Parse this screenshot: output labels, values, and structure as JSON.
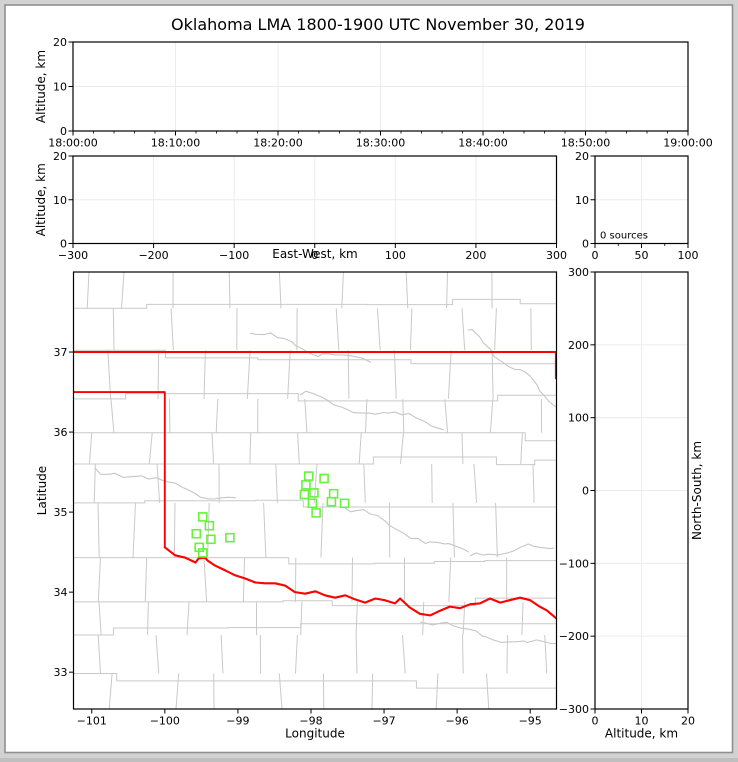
{
  "title": "Oklahoma LMA 1800-1900 UTC November 30, 2019",
  "colors": {
    "state_border": "#ff0000",
    "stations": "#66f33e",
    "county_lines": "#c9c9c9",
    "rivers": "#c6c6c6",
    "grid": "#ececec",
    "frame_bg": "#d2d2d2",
    "frame_line": "#8f8f8f",
    "spine": "#000000",
    "background": "#ffffff"
  },
  "chart_data": [
    {
      "type": "scatter",
      "panel": "time-altitude",
      "title": "Oklahoma LMA 1800-1900 UTC November 30, 2019",
      "ylabel": "Altitude, km",
      "xtick_labels": [
        "18:00:00",
        "18:10:00",
        "18:20:00",
        "18:30:00",
        "18:40:00",
        "18:50:00",
        "19:00:00"
      ],
      "ytick_values": [
        0,
        10,
        20
      ],
      "ytick_labels": [
        "0",
        "10",
        "20"
      ],
      "ylim": [
        0,
        20
      ],
      "points": []
    },
    {
      "type": "scatter",
      "panel": "eastwest-altitude",
      "xlabel": "East-West, km",
      "ylabel": "Altitude, km",
      "xtick_values": [
        -300,
        -200,
        -100,
        0,
        100,
        200,
        300
      ],
      "xtick_labels": [
        "−300",
        "−200",
        "−100",
        "0",
        "100",
        "200",
        "300"
      ],
      "ytick_values": [
        0,
        10,
        20
      ],
      "ytick_labels": [
        "0",
        "10",
        "20"
      ],
      "xlim": [
        -300,
        300
      ],
      "ylim": [
        0,
        20
      ],
      "points": []
    },
    {
      "type": "histogram",
      "panel": "source-count",
      "annotation": "0 sources",
      "xtick_values": [
        0,
        50,
        100
      ],
      "xtick_labels": [
        "0",
        "50",
        "100"
      ],
      "ytick_values": [
        0,
        10,
        20
      ],
      "ytick_labels": [
        "0",
        "10",
        "20"
      ],
      "xlim": [
        0,
        100
      ],
      "ylim": [
        0,
        20
      ],
      "points": []
    },
    {
      "type": "map",
      "panel": "plan-view",
      "xlabel": "Longitude",
      "ylabel": "Latitude",
      "xtick_values": [
        -101,
        -100,
        -99,
        -98,
        -97,
        -96,
        -95
      ],
      "xtick_labels": [
        "−101",
        "−100",
        "−99",
        "−98",
        "−97",
        "−96",
        "−95"
      ],
      "ytick_values": [
        33,
        34,
        35,
        36,
        37
      ],
      "ytick_labels": [
        "33",
        "34",
        "35",
        "36",
        "37"
      ],
      "xlim": [
        -101.25,
        -94.64
      ],
      "ylim": [
        32.54,
        38.0
      ],
      "stations": [
        [
          -98.03,
          35.45
        ],
        [
          -97.82,
          35.42
        ],
        [
          -98.07,
          35.34
        ],
        [
          -98.09,
          35.22
        ],
        [
          -97.96,
          35.24
        ],
        [
          -97.98,
          35.11
        ],
        [
          -97.69,
          35.23
        ],
        [
          -97.72,
          35.13
        ],
        [
          -97.54,
          35.11
        ],
        [
          -97.93,
          34.99
        ],
        [
          -99.48,
          34.94
        ],
        [
          -99.39,
          34.83
        ],
        [
          -99.57,
          34.73
        ],
        [
          -99.37,
          34.66
        ],
        [
          -99.11,
          34.68
        ],
        [
          -99.53,
          34.56
        ],
        [
          -99.48,
          34.49
        ]
      ],
      "state_border": {
        "north": [
          [
            -101.25,
            37.0
          ],
          [
            -94.64,
            37.0
          ]
        ],
        "northeast": [
          [
            -94.65,
            37.0
          ],
          [
            -94.65,
            36.67
          ]
        ],
        "panhandle": [
          [
            -101.25,
            36.5
          ],
          [
            -100.0,
            36.5
          ],
          [
            -100.0,
            34.56
          ]
        ],
        "red_river": [
          [
            -100.0,
            34.56
          ],
          [
            -99.86,
            34.46
          ],
          [
            -99.72,
            34.43
          ],
          [
            -99.58,
            34.37
          ],
          [
            -99.54,
            34.42
          ],
          [
            -99.45,
            34.43
          ],
          [
            -99.41,
            34.39
          ],
          [
            -99.31,
            34.33
          ],
          [
            -99.17,
            34.27
          ],
          [
            -99.04,
            34.21
          ],
          [
            -98.9,
            34.17
          ],
          [
            -98.76,
            34.12
          ],
          [
            -98.63,
            34.11
          ],
          [
            -98.49,
            34.11
          ],
          [
            -98.35,
            34.08
          ],
          [
            -98.22,
            34.0
          ],
          [
            -98.08,
            33.98
          ],
          [
            -97.94,
            34.01
          ],
          [
            -97.81,
            33.96
          ],
          [
            -97.67,
            33.93
          ],
          [
            -97.53,
            33.96
          ],
          [
            -97.4,
            33.91
          ],
          [
            -97.26,
            33.87
          ],
          [
            -97.12,
            33.92
          ],
          [
            -96.99,
            33.9
          ],
          [
            -96.85,
            33.86
          ],
          [
            -96.78,
            33.92
          ],
          [
            -96.65,
            33.81
          ],
          [
            -96.51,
            33.73
          ],
          [
            -96.37,
            33.71
          ],
          [
            -96.23,
            33.77
          ],
          [
            -96.1,
            33.82
          ],
          [
            -95.96,
            33.8
          ],
          [
            -95.82,
            33.85
          ],
          [
            -95.69,
            33.86
          ],
          [
            -95.55,
            33.92
          ],
          [
            -95.41,
            33.87
          ],
          [
            -95.28,
            33.9
          ],
          [
            -95.14,
            33.93
          ],
          [
            -95.0,
            33.9
          ],
          [
            -94.87,
            33.82
          ],
          [
            -94.77,
            33.77
          ],
          [
            -94.69,
            33.71
          ],
          [
            -94.64,
            33.67
          ]
        ]
      }
    },
    {
      "type": "scatter",
      "panel": "altitude-northsouth",
      "xlabel": "Altitude, km",
      "ylabel": "North-South, km",
      "xtick_values": [
        0,
        10,
        20
      ],
      "xtick_labels": [
        "0",
        "10",
        "20"
      ],
      "ytick_values": [
        -300,
        -200,
        -100,
        0,
        100,
        200,
        300
      ],
      "ytick_labels": [
        "−300",
        "−200",
        "−100",
        "0",
        "100",
        "200",
        "300"
      ],
      "xlim": [
        0,
        20
      ],
      "ylim": [
        -300,
        300
      ],
      "points": []
    }
  ]
}
